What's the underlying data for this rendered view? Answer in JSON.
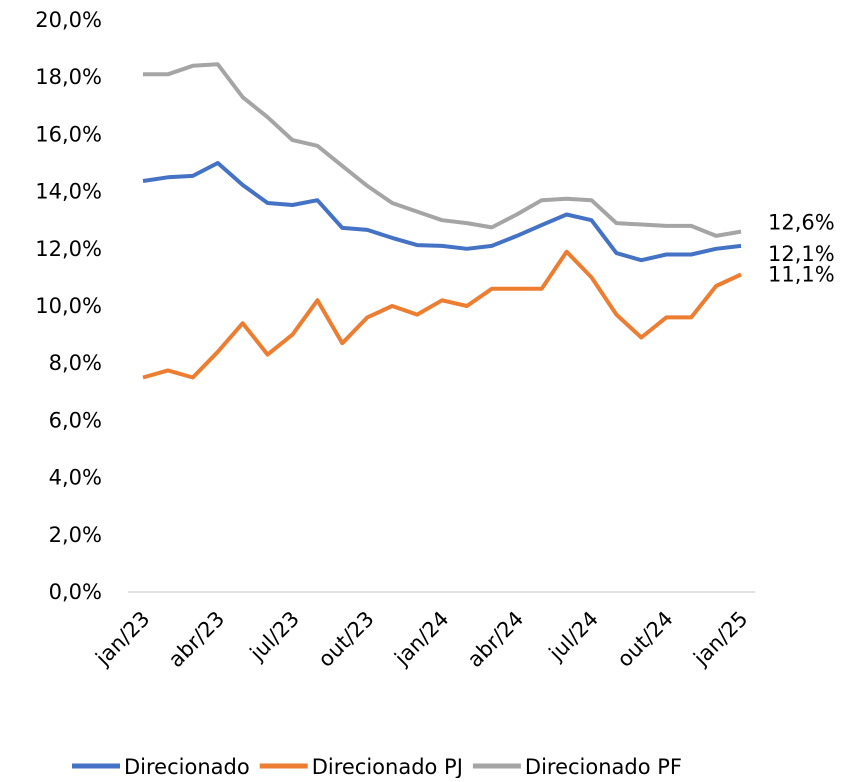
{
  "chart_data": {
    "type": "line",
    "categories": [
      "jan/23",
      null,
      null,
      "abr/23",
      null,
      null,
      "jul/23",
      null,
      null,
      "out/23",
      null,
      null,
      "jan/24",
      null,
      null,
      "abr/24",
      null,
      null,
      "jul/24",
      null,
      null,
      "out/24",
      null,
      null,
      "jan/25"
    ],
    "series": [
      {
        "name": "Direcionado",
        "color": "#4472c4",
        "values": [
          14.37,
          14.5,
          14.55,
          15.0,
          14.23,
          13.6,
          13.53,
          13.7,
          12.73,
          12.66,
          12.38,
          12.13,
          12.1,
          12.0,
          12.1,
          12.45,
          12.83,
          13.2,
          13.0,
          11.85,
          11.6,
          11.8,
          11.8,
          12.0,
          12.1
        ],
        "value_labels": [
          null,
          null,
          null,
          null,
          null,
          null,
          null,
          null,
          null,
          null,
          null,
          null,
          null,
          null,
          null,
          null,
          null,
          null,
          null,
          null,
          null,
          null,
          null,
          null,
          "12,1%"
        ]
      },
      {
        "name": "Direcionado PJ",
        "color": "#ed7d31",
        "values": [
          7.5,
          7.75,
          7.5,
          8.4,
          9.4,
          8.3,
          9.0,
          10.2,
          8.7,
          9.6,
          10.0,
          9.7,
          10.2,
          10.0,
          10.6,
          10.6,
          10.6,
          11.9,
          11.0,
          9.7,
          8.9,
          9.6,
          9.6,
          10.7,
          11.1
        ],
        "value_labels": [
          null,
          null,
          null,
          null,
          null,
          null,
          null,
          null,
          null,
          null,
          null,
          null,
          null,
          null,
          null,
          null,
          null,
          null,
          null,
          null,
          null,
          null,
          null,
          null,
          "11,1%"
        ]
      },
      {
        "name": "Direcionado PF",
        "color": "#a5a5a5",
        "values": [
          18.1,
          18.1,
          18.4,
          18.45,
          17.3,
          16.6,
          15.8,
          15.6,
          14.9,
          14.2,
          13.6,
          13.3,
          13.0,
          12.9,
          12.75,
          13.2,
          13.7,
          13.75,
          13.7,
          12.9,
          12.85,
          12.8,
          12.8,
          12.45,
          12.6
        ],
        "value_labels": [
          null,
          null,
          null,
          null,
          null,
          null,
          null,
          null,
          null,
          null,
          null,
          null,
          null,
          null,
          null,
          null,
          null,
          null,
          null,
          null,
          null,
          null,
          null,
          null,
          "12,6%"
        ]
      }
    ],
    "ylim": [
      0,
      20
    ],
    "yticks": [
      {
        "value": 0,
        "label": "0,0%"
      },
      {
        "value": 2,
        "label": "2,0%"
      },
      {
        "value": 4,
        "label": "4,0%"
      },
      {
        "value": 6,
        "label": "6,0%"
      },
      {
        "value": 8,
        "label": "8,0%"
      },
      {
        "value": 10,
        "label": "10,0%"
      },
      {
        "value": 12,
        "label": "12,0%"
      },
      {
        "value": 14,
        "label": "14,0%"
      },
      {
        "value": 16,
        "label": "16,0%"
      },
      {
        "value": 18,
        "label": "18,0%"
      },
      {
        "value": 20,
        "label": "20,0%"
      }
    ],
    "grid": false,
    "legend": "bottom"
  }
}
